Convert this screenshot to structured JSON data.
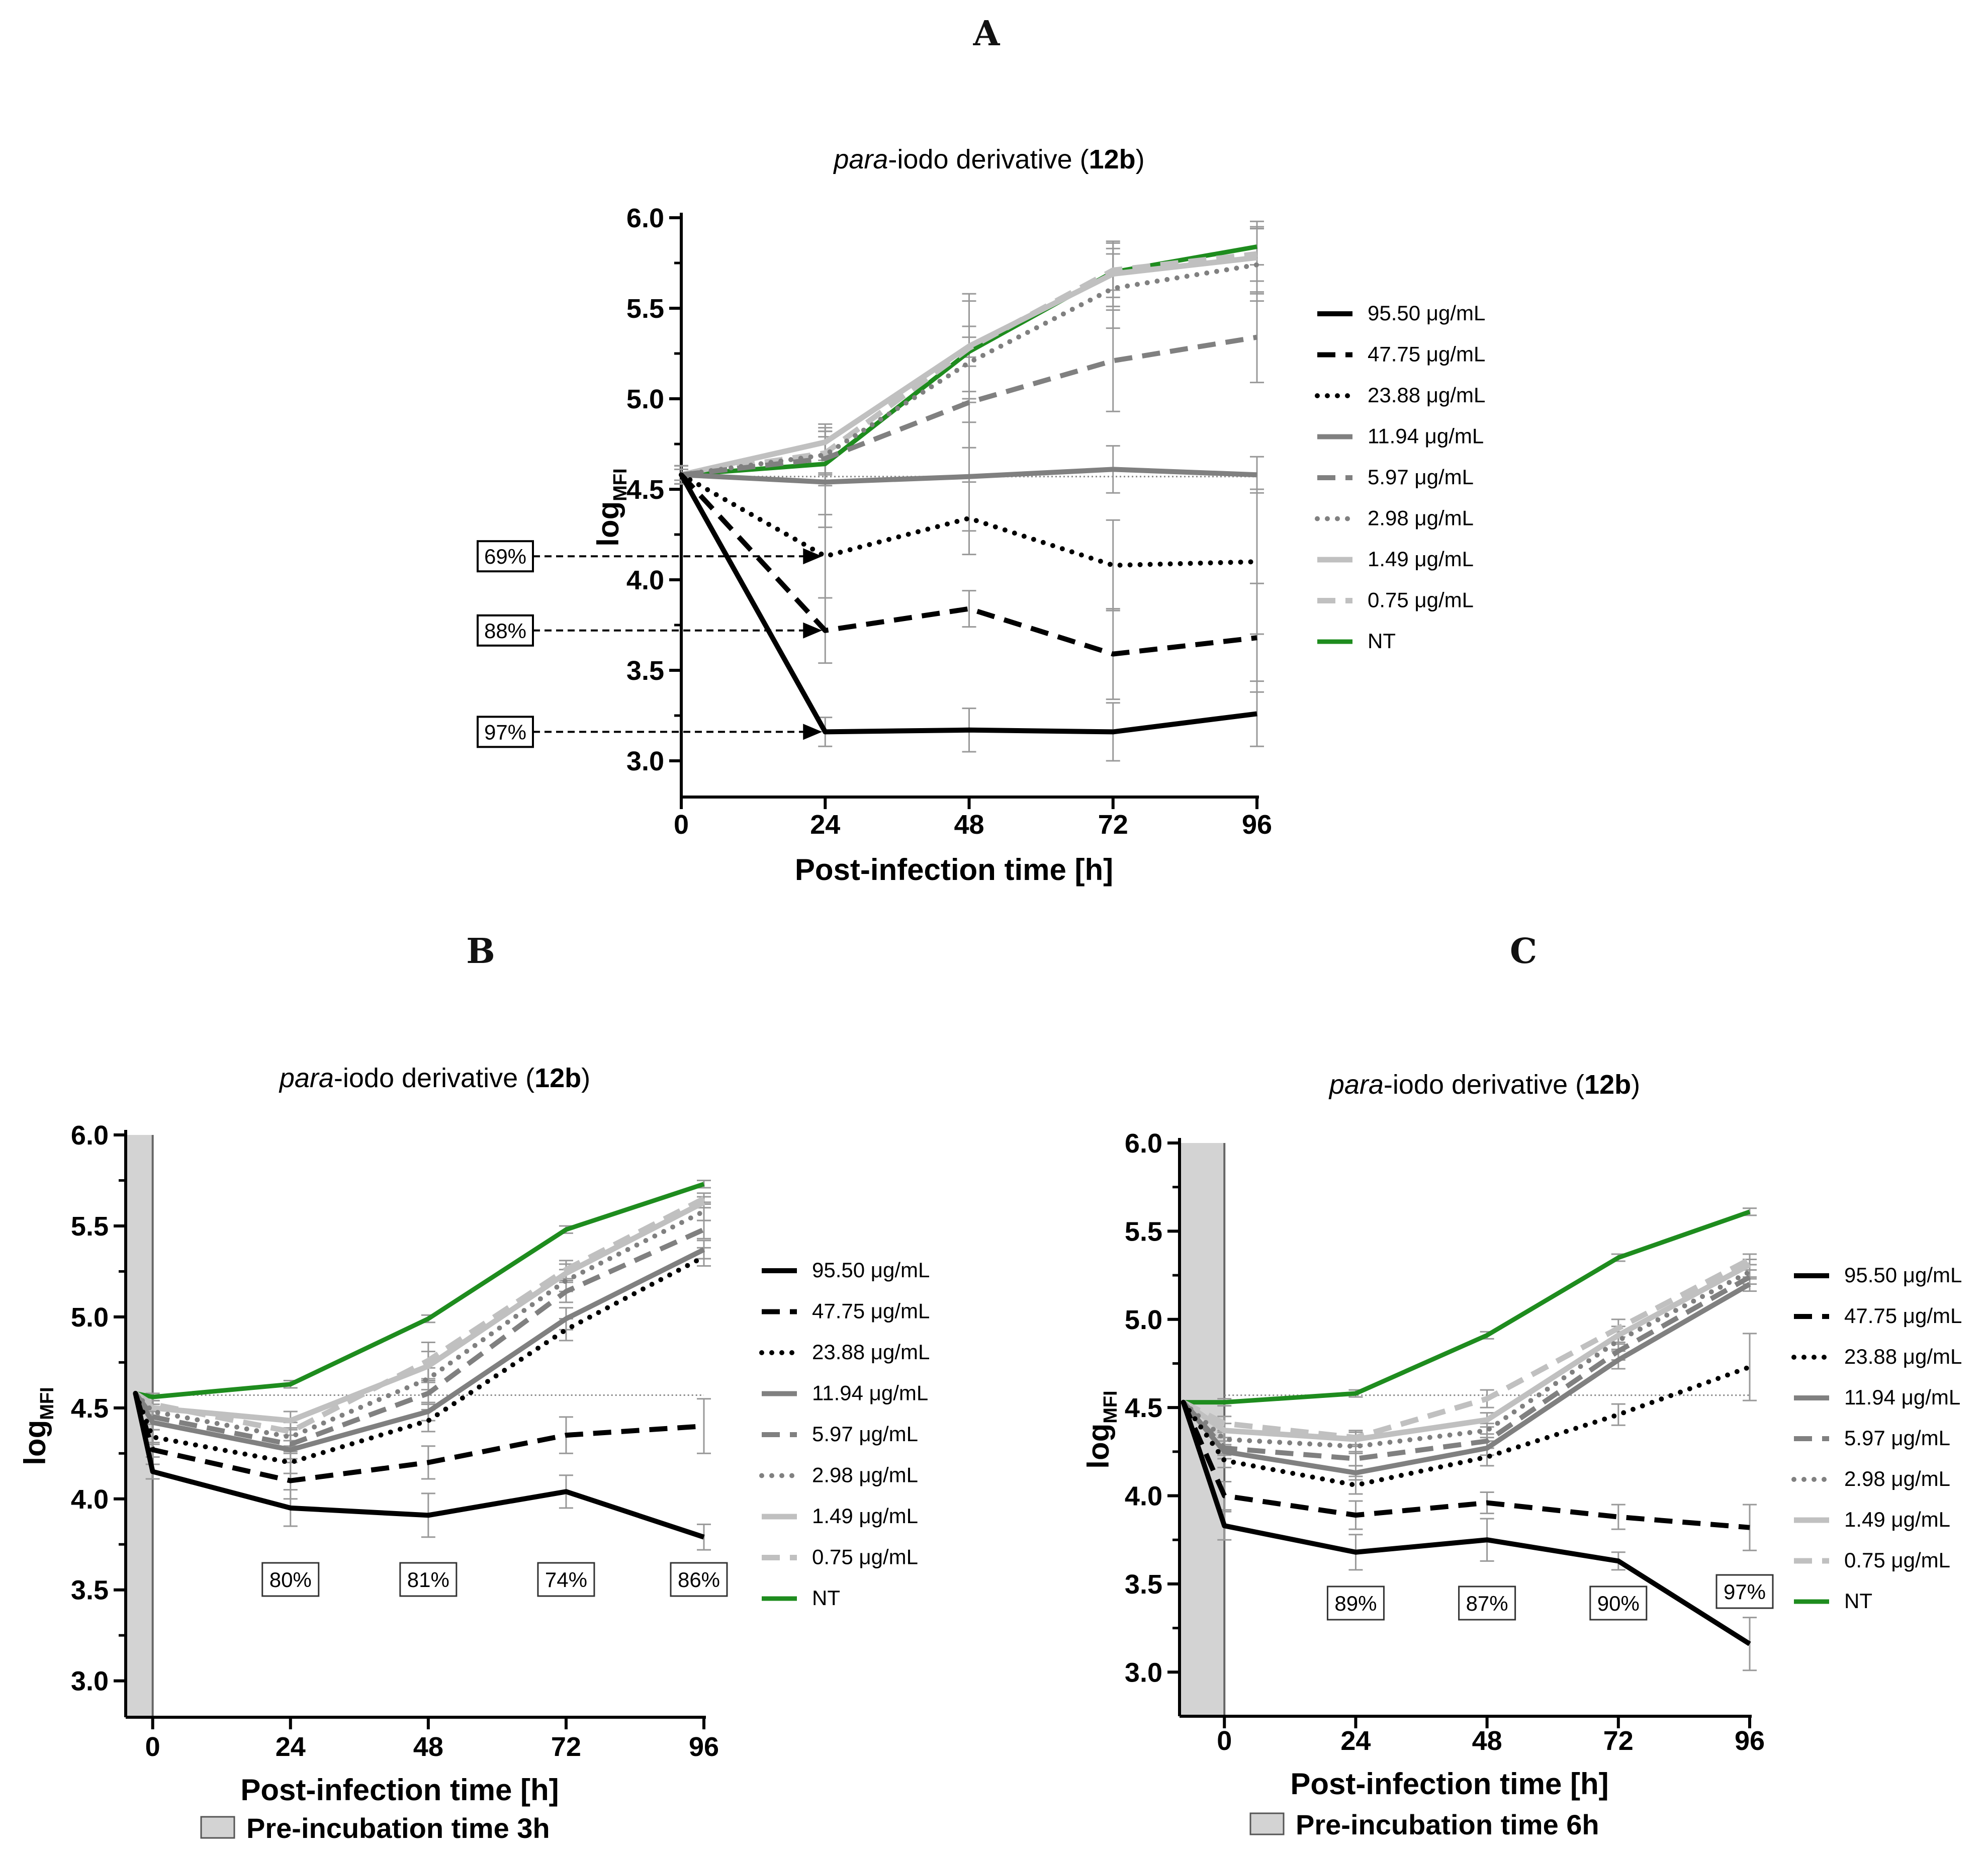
{
  "panel_labels": [
    "A",
    "B",
    "C"
  ],
  "colors": {
    "s95": "#000000",
    "s47": "#000000",
    "s23": "#000000",
    "s11": "#808080",
    "s5": "#808080",
    "s2": "#808080",
    "s1": "#c0c0c0",
    "s0": "#c0c0c0",
    "nt": "#1e8c1e",
    "errorbar": "#999999",
    "shade": "#d3d3d3",
    "baseline": "#888888"
  },
  "chart_data": [
    {
      "id": "A",
      "type": "line",
      "title": {
        "italic": "para",
        "normal": "-iodo derivative (",
        "bold": "12b",
        "close": ")"
      },
      "xlabel": "Post-infection time [h]",
      "ylabel": "log",
      "ylabel_sub": "MFI",
      "x": [
        0,
        24,
        48,
        72,
        96
      ],
      "xticks": [
        "0",
        "24",
        "48",
        "72",
        "96"
      ],
      "ylim": [
        2.8,
        6.0
      ],
      "yticks": [
        "3.0",
        "3.5",
        "4.0",
        "4.5",
        "5.0",
        "5.5",
        "6.0"
      ],
      "baseline": 4.57,
      "series": [
        {
          "name": "95.50 μg/mL",
          "style": "solid-black",
          "values": [
            4.58,
            3.16,
            3.17,
            3.16,
            3.26
          ],
          "err": [
            0.05,
            0.08,
            0.12,
            0.16,
            0.18
          ]
        },
        {
          "name": "47.75 μg/mL",
          "style": "dash-black",
          "values": [
            4.58,
            3.72,
            3.84,
            3.59,
            3.68
          ],
          "err": [
            0.05,
            0.18,
            0.1,
            0.25,
            0.3
          ]
        },
        {
          "name": "23.88 μg/mL",
          "style": "dot-black",
          "values": [
            4.58,
            4.13,
            4.34,
            4.08,
            4.1
          ],
          "err": [
            0.05,
            0.23,
            0.2,
            0.25,
            0.4
          ]
        },
        {
          "name": "11.94 μg/mL",
          "style": "solid-gray",
          "values": [
            4.58,
            4.54,
            4.57,
            4.61,
            4.58
          ],
          "err": [
            0.05,
            0.25,
            0.3,
            0.13,
            0.1
          ]
        },
        {
          "name": "5.97 μg/mL",
          "style": "dash-gray",
          "values": [
            4.58,
            4.67,
            4.98,
            5.21,
            5.34
          ],
          "err": [
            0.05,
            0.15,
            0.25,
            0.28,
            0.25
          ]
        },
        {
          "name": "2.98 μg/mL",
          "style": "dot-gray",
          "values": [
            4.58,
            4.69,
            5.2,
            5.61,
            5.74
          ],
          "err": [
            0.05,
            0.15,
            0.2,
            0.22,
            0.2
          ]
        },
        {
          "name": "1.49 μg/mL",
          "style": "solid-lightgray",
          "values": [
            4.58,
            4.76,
            5.29,
            5.69,
            5.78
          ],
          "err": [
            0.05,
            0.1,
            0.25,
            0.18,
            0.2
          ]
        },
        {
          "name": "0.75 μg/mL",
          "style": "dash-lightgray",
          "values": [
            4.58,
            4.7,
            5.28,
            5.71,
            5.8
          ],
          "err": [
            0.05,
            0.12,
            0.3,
            0.15,
            0.15
          ]
        },
        {
          "name": "NT",
          "style": "solid-green",
          "values": [
            4.58,
            4.64,
            5.26,
            5.7,
            5.84
          ],
          "err": [
            0.03,
            0.05,
            0.08,
            0.1,
            0.1
          ]
        }
      ],
      "annotations": [
        {
          "label": "69%",
          "y": 4.13
        },
        {
          "label": "88%",
          "y": 3.72
        },
        {
          "label": "97%",
          "y": 3.16
        }
      ]
    },
    {
      "id": "B",
      "type": "line",
      "title": {
        "italic": "para",
        "normal": "-iodo derivative (",
        "bold": "12b",
        "close": ")"
      },
      "xlabel": "Post-infection time [h]",
      "ylabel": "log",
      "ylabel_sub": "MFI",
      "x": [
        -3,
        0,
        24,
        48,
        72,
        96
      ],
      "xticks": [
        "0",
        "24",
        "48",
        "72",
        "96"
      ],
      "xlim": [
        -4,
        96
      ],
      "ylim": [
        2.8,
        6.0
      ],
      "yticks": [
        "3.0",
        "3.5",
        "4.0",
        "4.5",
        "5.0",
        "5.5",
        "6.0"
      ],
      "baseline": 4.57,
      "preincubation": {
        "hours": 3,
        "label": "Pre-incubation time 3h"
      },
      "series": [
        {
          "name": "95.50 μg/mL",
          "style": "solid-black",
          "values": [
            4.58,
            4.15,
            3.95,
            3.91,
            4.04,
            3.79
          ],
          "err": [
            0.04,
            0.04,
            0.1,
            0.12,
            0.09,
            0.07
          ]
        },
        {
          "name": "47.75 μg/mL",
          "style": "dash-black",
          "values": [
            4.58,
            4.27,
            4.1,
            4.2,
            4.35,
            4.4
          ],
          "err": [
            0.04,
            0.04,
            0.1,
            0.09,
            0.1,
            0.15
          ]
        },
        {
          "name": "23.88 μg/mL",
          "style": "dot-black",
          "values": [
            4.58,
            4.34,
            4.2,
            4.43,
            4.93,
            5.33
          ],
          "err": [
            0.04,
            0.04,
            0.06,
            0.06,
            0.06,
            0.05
          ]
        },
        {
          "name": "11.94 μg/mL",
          "style": "solid-gray",
          "values": [
            4.58,
            4.42,
            4.27,
            4.48,
            4.99,
            5.37
          ],
          "err": [
            0.04,
            0.04,
            0.05,
            0.05,
            0.06,
            0.05
          ]
        },
        {
          "name": "5.97 μg/mL",
          "style": "dash-gray",
          "values": [
            4.58,
            4.45,
            4.3,
            4.58,
            5.14,
            5.48
          ],
          "err": [
            0.04,
            0.04,
            0.05,
            0.06,
            0.06,
            0.05
          ]
        },
        {
          "name": "2.98 μg/mL",
          "style": "dot-gray",
          "values": [
            4.58,
            4.48,
            4.34,
            4.66,
            5.2,
            5.58
          ],
          "err": [
            0.04,
            0.04,
            0.05,
            0.06,
            0.06,
            0.05
          ]
        },
        {
          "name": "1.49 μg/mL",
          "style": "solid-lightgray",
          "values": [
            4.58,
            4.5,
            4.43,
            4.73,
            5.24,
            5.63
          ],
          "err": [
            0.04,
            0.04,
            0.05,
            0.08,
            0.05,
            0.03
          ]
        },
        {
          "name": "0.75 μg/mL",
          "style": "dash-lightgray",
          "values": [
            4.58,
            4.52,
            4.37,
            4.76,
            5.26,
            5.65
          ],
          "err": [
            0.04,
            0.04,
            0.05,
            0.1,
            0.05,
            0.03
          ]
        },
        {
          "name": "NT",
          "style": "solid-green",
          "values": [
            4.58,
            4.56,
            4.63,
            4.99,
            5.48,
            5.73
          ],
          "err": [
            0.02,
            0.02,
            0.02,
            0.02,
            0.02,
            0.02
          ]
        }
      ],
      "annotations": [
        {
          "label": "80%",
          "x": 24
        },
        {
          "label": "81%",
          "x": 48
        },
        {
          "label": "74%",
          "x": 72
        },
        {
          "label": "86%",
          "x": 96
        }
      ]
    },
    {
      "id": "C",
      "type": "line",
      "title": {
        "italic": "para",
        "normal": "-iodo derivative (",
        "bold": "12b",
        "close": ")"
      },
      "xlabel": "Post-infection time [h]",
      "ylabel": "log",
      "ylabel_sub": "MFI",
      "x": [
        -7.5,
        0,
        24,
        48,
        72,
        96
      ],
      "xticks": [
        "0",
        "24",
        "48",
        "72",
        "96"
      ],
      "xlim": [
        -7.5,
        96
      ],
      "ylim": [
        2.75,
        6.0
      ],
      "yticks": [
        "3.0",
        "3.5",
        "4.0",
        "4.5",
        "5.0",
        "5.5",
        "6.0"
      ],
      "baseline": 4.57,
      "preincubation": {
        "hours": 6,
        "label": "Pre-incubation time 6h"
      },
      "series": [
        {
          "name": "95.50 μg/mL",
          "style": "solid-black",
          "values": [
            4.53,
            3.83,
            3.68,
            3.75,
            3.63,
            3.16
          ],
          "err": [
            0.04,
            0.08,
            0.1,
            0.12,
            0.05,
            0.15
          ]
        },
        {
          "name": "47.75 μg/mL",
          "style": "dash-black",
          "values": [
            4.53,
            4.0,
            3.89,
            3.96,
            3.88,
            3.82
          ],
          "err": [
            0.04,
            0.08,
            0.08,
            0.06,
            0.07,
            0.13
          ]
        },
        {
          "name": "23.88 μg/mL",
          "style": "dot-black",
          "values": [
            4.53,
            4.2,
            4.06,
            4.22,
            4.46,
            4.73
          ],
          "err": [
            0.04,
            0.04,
            0.05,
            0.05,
            0.06,
            0.19
          ]
        },
        {
          "name": "11.94 μg/mL",
          "style": "solid-gray",
          "values": [
            4.53,
            4.25,
            4.13,
            4.27,
            4.77,
            5.2
          ],
          "err": [
            0.04,
            0.04,
            0.04,
            0.04,
            0.05,
            0.04
          ]
        },
        {
          "name": "5.97 μg/mL",
          "style": "dash-gray",
          "values": [
            4.53,
            4.27,
            4.21,
            4.31,
            4.82,
            5.24
          ],
          "err": [
            0.04,
            0.04,
            0.04,
            0.04,
            0.05,
            0.04
          ]
        },
        {
          "name": "2.98 μg/mL",
          "style": "dot-gray",
          "values": [
            4.53,
            4.32,
            4.28,
            4.37,
            4.88,
            5.27
          ],
          "err": [
            0.04,
            0.04,
            0.04,
            0.04,
            0.05,
            0.04
          ]
        },
        {
          "name": "1.49 μg/mL",
          "style": "solid-lightgray",
          "values": [
            4.53,
            4.37,
            4.32,
            4.43,
            4.91,
            5.31
          ],
          "err": [
            0.04,
            0.04,
            0.04,
            0.04,
            0.05,
            0.03
          ]
        },
        {
          "name": "0.75 μg/mL",
          "style": "dash-lightgray",
          "values": [
            4.53,
            4.41,
            4.33,
            4.55,
            4.95,
            5.34
          ],
          "err": [
            0.04,
            0.04,
            0.04,
            0.05,
            0.05,
            0.03
          ]
        },
        {
          "name": "NT",
          "style": "solid-green",
          "values": [
            4.53,
            4.53,
            4.58,
            4.91,
            5.35,
            5.61
          ],
          "err": [
            0.02,
            0.02,
            0.02,
            0.02,
            0.02,
            0.02
          ]
        }
      ],
      "annotations": [
        {
          "label": "89%",
          "x": 24
        },
        {
          "label": "87%",
          "x": 48
        },
        {
          "label": "90%",
          "x": 72
        },
        {
          "label": "97%",
          "x": 96
        }
      ]
    }
  ]
}
